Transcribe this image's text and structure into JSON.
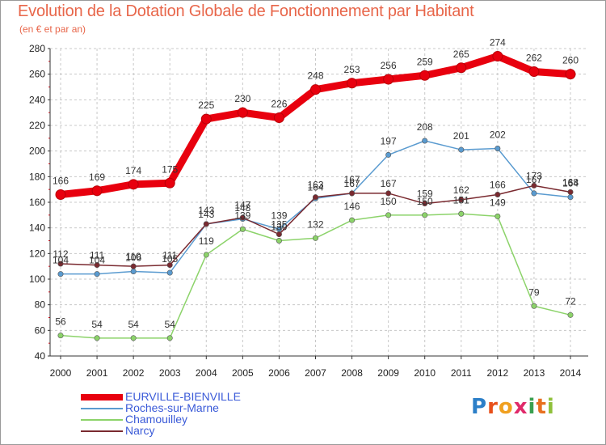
{
  "chart_data": {
    "type": "line",
    "title": "Evolution de la Dotation Globale de Fonctionnement par Habitant",
    "subtitle": "(en € et par an)",
    "x": [
      "2000",
      "2001",
      "2002",
      "2003",
      "2004",
      "2005",
      "2006",
      "2007",
      "2008",
      "2009",
      "2010",
      "2011",
      "2012",
      "2013",
      "2014"
    ],
    "ylim": [
      40,
      280
    ],
    "yticks": [
      "40",
      "60",
      "80",
      "100",
      "120",
      "140",
      "160",
      "180",
      "200",
      "220",
      "240",
      "260",
      "280"
    ],
    "series": [
      {
        "name": "EURVILLE-BIENVILLE",
        "color": "#e8000e",
        "values": [
          166,
          169,
          174,
          175,
          225,
          230,
          226,
          248,
          253,
          256,
          259,
          265,
          274,
          262,
          260
        ]
      },
      {
        "name": "Roches-sur-Marne",
        "color": "#5a9bd0",
        "values": [
          104,
          104,
          106,
          105,
          143,
          147,
          139,
          163,
          167,
          197,
          208,
          201,
          202,
          167,
          164
        ]
      },
      {
        "name": "Chamouilley",
        "color": "#8cd36a",
        "values": [
          56,
          54,
          54,
          54,
          119,
          139,
          130,
          132,
          146,
          150,
          150,
          151,
          149,
          79,
          72
        ]
      },
      {
        "name": "Narcy",
        "color": "#7a2a30",
        "values": [
          112,
          111,
          110,
          111,
          143,
          148,
          135,
          164,
          167,
          167,
          159,
          162,
          166,
          173,
          168
        ]
      }
    ]
  },
  "brand": {
    "letters": [
      "P",
      "r",
      "o",
      "x",
      "i",
      "t",
      "i"
    ],
    "colors": [
      "#2c7fc8",
      "#e8501a",
      "#f0a020",
      "#e02a6a",
      "#3aa050",
      "#e87020",
      "#8fc03a"
    ]
  }
}
